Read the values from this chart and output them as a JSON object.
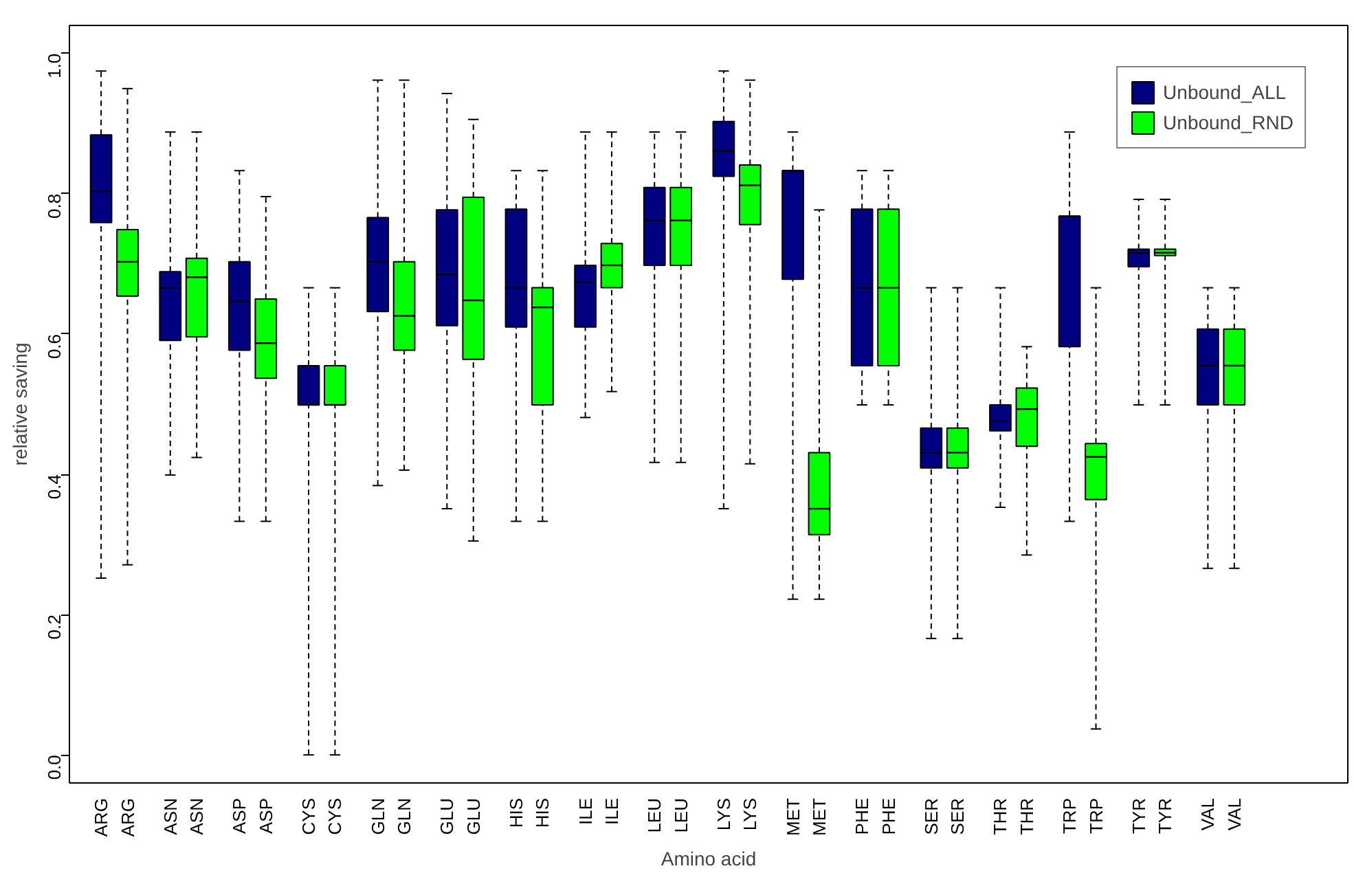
{
  "chart_data": {
    "type": "box",
    "xlabel": "Amino acid",
    "ylabel": "relative saving",
    "categories": [
      "ARG",
      "ARG",
      "ASN",
      "ASN",
      "ASP",
      "ASP",
      "CYS",
      "CYS",
      "GLN",
      "GLN",
      "GLU",
      "GLU",
      "HIS",
      "HIS",
      "ILE",
      "ILE",
      "LEU",
      "LEU",
      "LYS",
      "LYS",
      "MET",
      "MET",
      "PHE",
      "PHE",
      "SER",
      "SER",
      "THR",
      "THR",
      "TRP",
      "TRP",
      "TYR",
      "TYR",
      "VAL",
      "VAL"
    ],
    "ylim": [
      -0.04,
      1.04
    ],
    "yticks": [
      {
        "value": 0,
        "label": "0.0"
      },
      0.2,
      0.4,
      0.6,
      0.8,
      {
        "value": 1,
        "label": "1.0"
      }
    ],
    "grid": false,
    "legend": "top right",
    "line_style": "dashed",
    "series": [
      {
        "name": "Unbound_ALL",
        "color": "#000080",
        "boxes": [
          {
            "low": 0.252,
            "q1": 0.759,
            "median": 0.803,
            "q3": 0.884,
            "high": 0.975
          },
          null,
          {
            "low": 0.399,
            "q1": 0.591,
            "median": 0.666,
            "q3": 0.689,
            "high": 0.888
          },
          null,
          {
            "low": 0.333,
            "q1": 0.577,
            "median": 0.647,
            "q3": 0.703,
            "high": 0.833
          },
          null,
          {
            "low": 0.0,
            "q1": 0.499,
            "median": 0.499,
            "q3": 0.555,
            "high": 0.666
          },
          null,
          {
            "low": 0.384,
            "q1": 0.632,
            "median": 0.703,
            "q3": 0.766,
            "high": 0.962
          },
          null,
          {
            "low": 0.351,
            "q1": 0.612,
            "median": 0.685,
            "q3": 0.777,
            "high": 0.943
          },
          null,
          {
            "low": 0.333,
            "q1": 0.61,
            "median": 0.666,
            "q3": 0.778,
            "high": 0.833
          },
          null,
          {
            "low": 0.481,
            "q1": 0.61,
            "median": 0.674,
            "q3": 0.698,
            "high": 0.888
          },
          null,
          {
            "low": 0.417,
            "q1": 0.698,
            "median": 0.762,
            "q3": 0.809,
            "high": 0.888
          },
          null,
          {
            "low": 0.351,
            "q1": 0.825,
            "median": 0.861,
            "q3": 0.903,
            "high": 0.975
          },
          null,
          {
            "low": 0.222,
            "q1": 0.678,
            "median": 0.833,
            "q3": 0.833,
            "high": 0.888
          },
          null,
          {
            "low": 0.499,
            "q1": 0.555,
            "median": 0.666,
            "q3": 0.778,
            "high": 0.833
          },
          null,
          {
            "low": 0.166,
            "q1": 0.409,
            "median": 0.431,
            "q3": 0.466,
            "high": 0.666
          },
          null,
          {
            "low": 0.353,
            "q1": 0.462,
            "median": 0.476,
            "q3": 0.499,
            "high": 0.666
          },
          null,
          {
            "low": 0.333,
            "q1": 0.582,
            "median": 0.768,
            "q3": 0.768,
            "high": 0.888
          },
          null,
          {
            "low": 0.499,
            "q1": 0.696,
            "median": 0.716,
            "q3": 0.721,
            "high": 0.792
          },
          null,
          {
            "low": 0.266,
            "q1": 0.499,
            "median": 0.555,
            "q3": 0.607,
            "high": 0.666
          },
          null
        ]
      },
      {
        "name": "Unbound_RND",
        "color": "#00ff00",
        "boxes": [
          null,
          {
            "low": 0.271,
            "q1": 0.654,
            "median": 0.703,
            "q3": 0.749,
            "high": 0.95
          },
          null,
          {
            "low": 0.424,
            "q1": 0.596,
            "median": 0.681,
            "q3": 0.708,
            "high": 0.888
          },
          null,
          {
            "low": 0.333,
            "q1": 0.537,
            "median": 0.587,
            "q3": 0.65,
            "high": 0.796
          },
          null,
          {
            "low": 0.0,
            "q1": 0.499,
            "median": 0.499,
            "q3": 0.555,
            "high": 0.666
          },
          null,
          {
            "low": 0.406,
            "q1": 0.577,
            "median": 0.626,
            "q3": 0.703,
            "high": 0.962
          },
          null,
          {
            "low": 0.305,
            "q1": 0.564,
            "median": 0.648,
            "q3": 0.795,
            "high": 0.906
          },
          null,
          {
            "low": 0.333,
            "q1": 0.499,
            "median": 0.638,
            "q3": 0.666,
            "high": 0.833
          },
          null,
          {
            "low": 0.518,
            "q1": 0.666,
            "median": 0.698,
            "q3": 0.729,
            "high": 0.888
          },
          null,
          {
            "low": 0.417,
            "q1": 0.698,
            "median": 0.762,
            "q3": 0.809,
            "high": 0.888
          },
          null,
          {
            "low": 0.415,
            "q1": 0.756,
            "median": 0.812,
            "q3": 0.841,
            "high": 0.962
          },
          null,
          {
            "low": 0.222,
            "q1": 0.314,
            "median": 0.351,
            "q3": 0.431,
            "high": 0.777
          },
          null,
          {
            "low": 0.499,
            "q1": 0.555,
            "median": 0.666,
            "q3": 0.778,
            "high": 0.833
          },
          null,
          {
            "low": 0.166,
            "q1": 0.409,
            "median": 0.431,
            "q3": 0.466,
            "high": 0.666
          },
          null,
          {
            "low": 0.285,
            "q1": 0.44,
            "median": 0.493,
            "q3": 0.523,
            "high": 0.582
          },
          null,
          {
            "low": 0.037,
            "q1": 0.364,
            "median": 0.425,
            "q3": 0.444,
            "high": 0.666
          },
          null,
          {
            "low": 0.499,
            "q1": 0.712,
            "median": 0.716,
            "q3": 0.721,
            "high": 0.792
          },
          null,
          {
            "low": 0.266,
            "q1": 0.499,
            "median": 0.555,
            "q3": 0.607,
            "high": 0.666
          }
        ]
      }
    ]
  }
}
